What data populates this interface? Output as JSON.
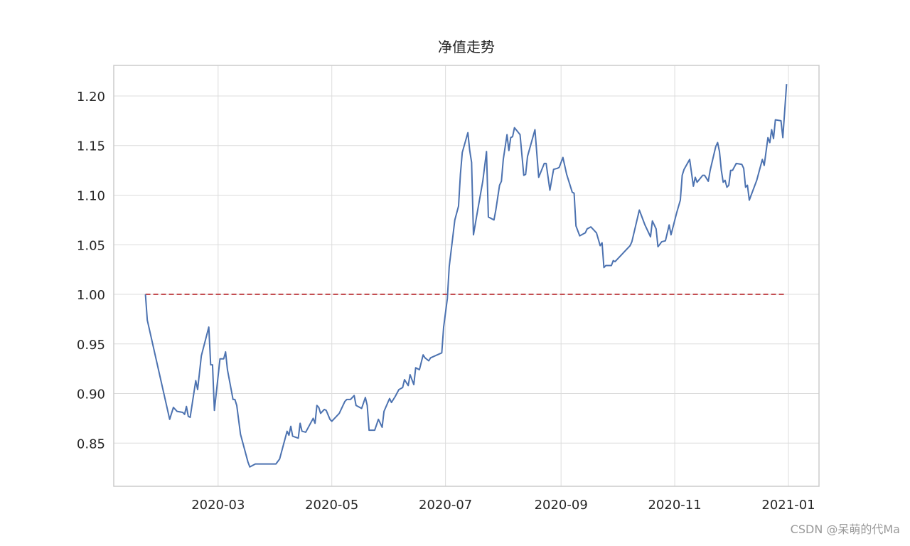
{
  "chart_data": {
    "type": "line",
    "title": "净值走势",
    "x": [
      21,
      22,
      34,
      36,
      38,
      41,
      42,
      43,
      44,
      45,
      48,
      49,
      51,
      55,
      56,
      57,
      58,
      61,
      63,
      64,
      65,
      68,
      69,
      70,
      72,
      76,
      77,
      80,
      91,
      93,
      97,
      98,
      99,
      100,
      103,
      104,
      105,
      107,
      111,
      112,
      113,
      114,
      115,
      117,
      118,
      120,
      121,
      125,
      128,
      129,
      131,
      133,
      134,
      137,
      139,
      140,
      141,
      144,
      146,
      148,
      149,
      152,
      153,
      155,
      157,
      159,
      160,
      162,
      163,
      165,
      166,
      168,
      170,
      171,
      173,
      174,
      180,
      181,
      183,
      184,
      187,
      189,
      190,
      191,
      194,
      195,
      196,
      197,
      199,
      202,
      204,
      205,
      208,
      209,
      211,
      212,
      213,
      215,
      216,
      217,
      218,
      219,
      222,
      224,
      225,
      226,
      230,
      232,
      235,
      236,
      238,
      240,
      242,
      243,
      245,
      247,
      250,
      251,
      252,
      254,
      257,
      258,
      260,
      261,
      263,
      265,
      266,
      267,
      268,
      271,
      272,
      273,
      281,
      282,
      286,
      287,
      289,
      292,
      293,
      295,
      296,
      298,
      300,
      302,
      303,
      306,
      308,
      309,
      310,
      313,
      315,
      316,
      317,
      320,
      321,
      323,
      324,
      327,
      328,
      329,
      330,
      331,
      332,
      333,
      334,
      335,
      336,
      338,
      341,
      342,
      343,
      344,
      345,
      347,
      349,
      352,
      353,
      355,
      356,
      357,
      358,
      359,
      362,
      363,
      365
    ],
    "values": [
      1.0,
      0.974,
      0.874,
      0.886,
      0.882,
      0.881,
      0.879,
      0.887,
      0.877,
      0.876,
      0.913,
      0.904,
      0.938,
      0.967,
      0.929,
      0.929,
      0.883,
      0.935,
      0.935,
      0.942,
      0.924,
      0.894,
      0.894,
      0.888,
      0.859,
      0.831,
      0.826,
      0.829,
      0.829,
      0.834,
      0.862,
      0.858,
      0.867,
      0.857,
      0.855,
      0.87,
      0.862,
      0.861,
      0.875,
      0.87,
      0.888,
      0.886,
      0.88,
      0.884,
      0.883,
      0.874,
      0.872,
      0.88,
      0.892,
      0.894,
      0.894,
      0.898,
      0.888,
      0.885,
      0.896,
      0.888,
      0.863,
      0.863,
      0.874,
      0.866,
      0.882,
      0.895,
      0.891,
      0.897,
      0.904,
      0.906,
      0.914,
      0.908,
      0.919,
      0.909,
      0.926,
      0.924,
      0.939,
      0.936,
      0.933,
      0.936,
      0.941,
      0.967,
      0.996,
      1.028,
      1.075,
      1.089,
      1.121,
      1.143,
      1.163,
      1.145,
      1.133,
      1.06,
      1.082,
      1.114,
      1.144,
      1.078,
      1.075,
      1.085,
      1.11,
      1.114,
      1.136,
      1.161,
      1.145,
      1.158,
      1.159,
      1.168,
      1.161,
      1.12,
      1.121,
      1.139,
      1.166,
      1.118,
      1.132,
      1.132,
      1.105,
      1.126,
      1.127,
      1.128,
      1.138,
      1.121,
      1.103,
      1.102,
      1.069,
      1.059,
      1.062,
      1.066,
      1.068,
      1.066,
      1.062,
      1.049,
      1.052,
      1.027,
      1.029,
      1.029,
      1.034,
      1.033,
      1.049,
      1.053,
      1.085,
      1.08,
      1.07,
      1.058,
      1.074,
      1.066,
      1.048,
      1.053,
      1.054,
      1.07,
      1.06,
      1.082,
      1.095,
      1.12,
      1.126,
      1.136,
      1.109,
      1.118,
      1.113,
      1.12,
      1.12,
      1.114,
      1.125,
      1.149,
      1.153,
      1.144,
      1.125,
      1.113,
      1.115,
      1.108,
      1.11,
      1.125,
      1.125,
      1.132,
      1.131,
      1.127,
      1.108,
      1.11,
      1.095,
      1.105,
      1.115,
      1.136,
      1.13,
      1.158,
      1.153,
      1.166,
      1.157,
      1.176,
      1.175,
      1.158,
      1.212
    ],
    "color": "#4c72b0",
    "reference_line": {
      "y": 1.0,
      "color": "#c44e52",
      "style": "dashed"
    },
    "xlim": [
      4,
      382.4
    ],
    "xticks": [
      {
        "value": 60,
        "label": "2020-03"
      },
      {
        "value": 121,
        "label": "2020-05"
      },
      {
        "value": 182,
        "label": "2020-07"
      },
      {
        "value": 244,
        "label": "2020-09"
      },
      {
        "value": 305,
        "label": "2020-11"
      },
      {
        "value": 366,
        "label": "2021-01"
      }
    ],
    "ylim": [
      0.8065,
      1.2308
    ],
    "yticks": [
      {
        "value": 0.85,
        "label": "0.85"
      },
      {
        "value": 0.9,
        "label": "0.90"
      },
      {
        "value": 0.95,
        "label": "0.95"
      },
      {
        "value": 1.0,
        "label": "1.00"
      },
      {
        "value": 1.05,
        "label": "1.05"
      },
      {
        "value": 1.1,
        "label": "1.10"
      },
      {
        "value": 1.15,
        "label": "1.15"
      },
      {
        "value": 1.2,
        "label": "1.20"
      }
    ],
    "grid": true,
    "watermark": "CSDN @呆萌的代Ma"
  }
}
